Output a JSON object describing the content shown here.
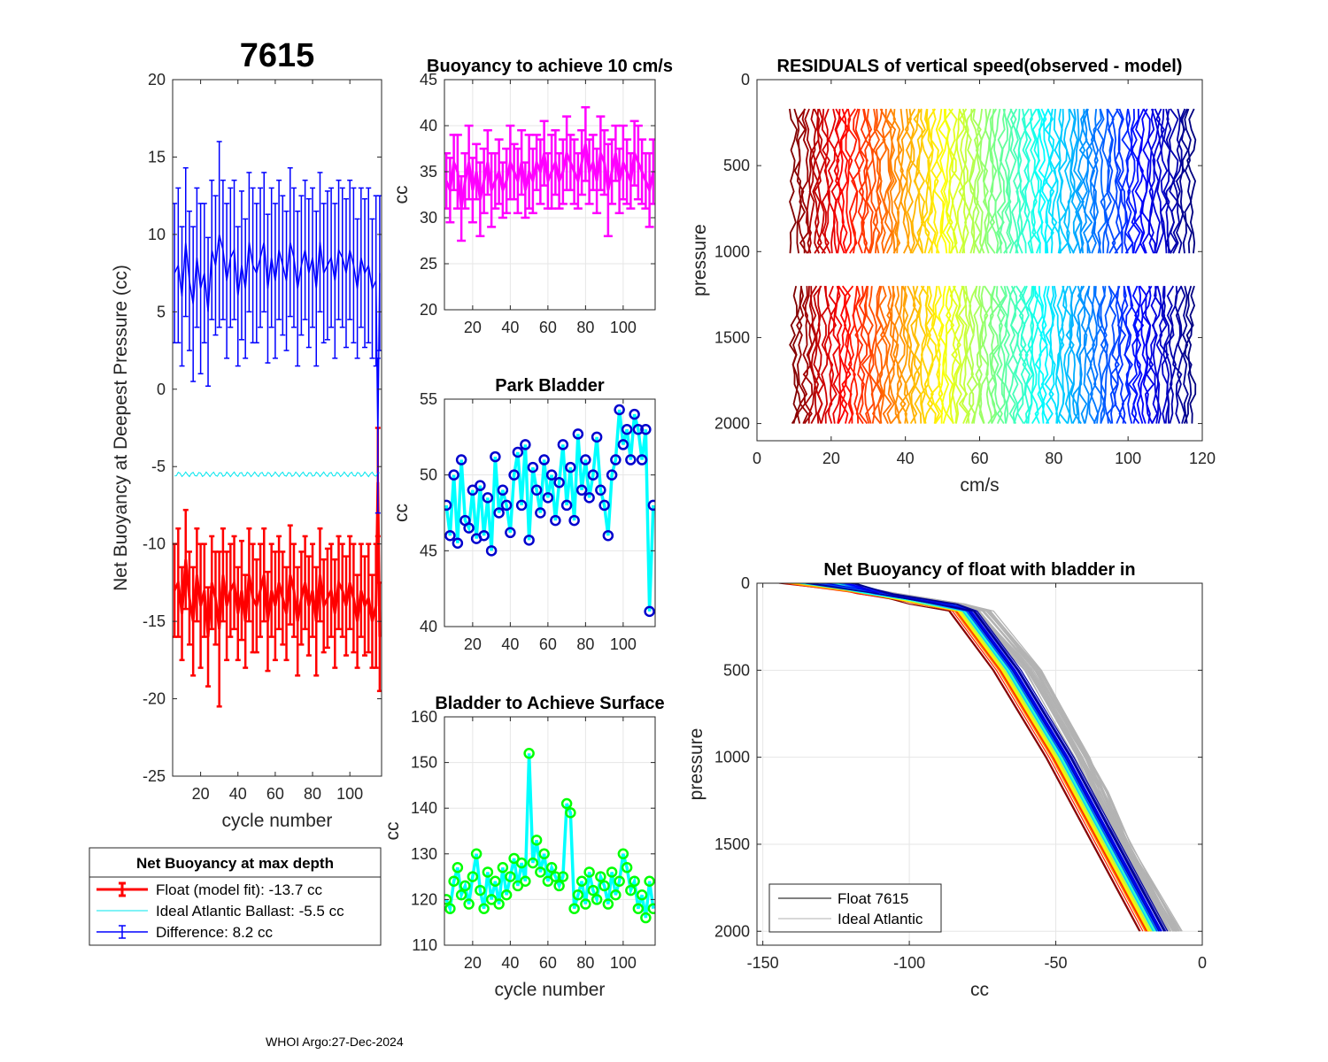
{
  "figure": {
    "main_title": "7615",
    "footer": "WHOI Argo:27-Dec-2024"
  },
  "chart_data": [
    {
      "id": "net_buoyancy",
      "type": "line",
      "title": "",
      "xlabel": "cycle number",
      "ylabel": "Net Buoyancy at Deepest Pressure (cc)",
      "xlim": [
        5,
        117
      ],
      "ylim": [
        -25,
        20
      ],
      "xticks": [
        20,
        40,
        60,
        80,
        100
      ],
      "yticks": [
        -25,
        -20,
        -15,
        -10,
        -5,
        0,
        5,
        10,
        15,
        20
      ],
      "series": [
        {
          "name": "Float (model fit)",
          "color": "#ff0000",
          "style": "errorbar",
          "x": [
            6,
            8,
            10,
            12,
            14,
            16,
            18,
            20,
            22,
            24,
            26,
            28,
            30,
            32,
            34,
            36,
            38,
            40,
            42,
            44,
            46,
            48,
            50,
            52,
            54,
            56,
            58,
            60,
            62,
            64,
            66,
            68,
            70,
            72,
            74,
            76,
            78,
            80,
            82,
            84,
            86,
            88,
            90,
            92,
            94,
            96,
            98,
            100,
            102,
            104,
            106,
            108,
            110,
            112,
            114,
            115,
            116
          ],
          "values": [
            -13,
            -12.5,
            -14.5,
            -11,
            -13.5,
            -15,
            -12,
            -14,
            -13,
            -16,
            -12.5,
            -13.5,
            -15.5,
            -12,
            -14,
            -13,
            -12.5,
            -14.5,
            -13,
            -15,
            -12,
            -13.5,
            -14,
            -13,
            -12,
            -15,
            -13,
            -14,
            -12.5,
            -13.5,
            -14.5,
            -12,
            -13,
            -15,
            -13.5,
            -12.5,
            -14,
            -13,
            -15,
            -12,
            -14,
            -13.5,
            -13,
            -14.5,
            -12.5,
            -13,
            -14,
            -12.5,
            -13.5,
            -15,
            -13,
            -14,
            -13.5,
            -15,
            -14,
            -6,
            -16
          ],
          "errors": [
            3,
            3.5,
            3,
            3.2,
            3,
            3.5,
            3,
            4,
            3,
            3.2,
            3,
            3,
            5,
            3,
            3.5,
            3,
            3,
            3,
            3.2,
            3,
            3,
            3.5,
            3,
            3,
            3,
            3.2,
            3,
            3.5,
            3,
            3,
            3,
            3.2,
            3,
            3.5,
            3,
            3,
            3.2,
            3,
            3.5,
            3,
            3,
            3.2,
            3,
            3.5,
            3,
            3,
            3.2,
            3,
            3.5,
            3,
            3,
            3.2,
            3.5,
            3,
            4,
            3.5,
            3.5
          ]
        },
        {
          "name": "Ideal Atlantic Ballast",
          "color": "#00e5ee",
          "style": "line",
          "x": [
            6,
            116
          ],
          "values": [
            -5.5,
            -5.5
          ]
        },
        {
          "name": "Difference",
          "color": "#0000ff",
          "style": "errorbar",
          "x": [
            6,
            8,
            10,
            12,
            14,
            16,
            18,
            20,
            22,
            24,
            26,
            28,
            30,
            32,
            34,
            36,
            38,
            40,
            42,
            44,
            46,
            48,
            50,
            52,
            54,
            56,
            58,
            60,
            62,
            64,
            66,
            68,
            70,
            72,
            74,
            76,
            78,
            80,
            82,
            84,
            86,
            88,
            90,
            92,
            94,
            96,
            98,
            100,
            102,
            104,
            106,
            108,
            110,
            112,
            114,
            115,
            116
          ],
          "values": [
            7.5,
            8,
            6,
            9.5,
            7,
            5.5,
            8.5,
            6.5,
            7.5,
            5,
            9,
            8,
            10,
            9,
            7,
            8.5,
            9,
            6,
            8,
            6.5,
            9.5,
            8,
            7.5,
            8.5,
            9.5,
            6.5,
            8.5,
            7,
            9,
            8,
            7,
            9.5,
            8.5,
            6.5,
            8,
            9,
            7.5,
            8.5,
            6.5,
            9.5,
            7.5,
            8,
            8.5,
            7,
            9,
            8.5,
            7.5,
            9,
            8,
            6.5,
            8.5,
            7.5,
            8,
            6.5,
            7,
            -3,
            7.5
          ],
          "errors": [
            4.5,
            5,
            4.5,
            4.8,
            4.5,
            5,
            4.5,
            5.5,
            4.5,
            4.8,
            4.5,
            4.5,
            6,
            4.5,
            5,
            4.5,
            4.5,
            4.5,
            4.8,
            4.5,
            4.5,
            5,
            4.5,
            4.5,
            4.5,
            4.8,
            4.5,
            5,
            4.5,
            4.5,
            4.5,
            4.8,
            4.5,
            5,
            4.5,
            4.5,
            4.8,
            4.5,
            5,
            4.5,
            4.5,
            4.8,
            4.5,
            5,
            4.5,
            4.5,
            4.8,
            4.5,
            5,
            4.5,
            4.5,
            4.8,
            5,
            4.5,
            5.5,
            5,
            5
          ]
        }
      ],
      "legend": {
        "title": "Net Buoyancy at max depth",
        "entries": [
          {
            "label": "Float (model fit): -13.7 cc",
            "color": "#ff0000",
            "style": "errorbar"
          },
          {
            "label": "Ideal Atlantic Ballast:  -5.5 cc",
            "color": "#00e5ee",
            "style": "line"
          },
          {
            "label": "Difference:   8.2 cc",
            "color": "#0000ff",
            "style": "errorbar"
          }
        ]
      }
    },
    {
      "id": "buoyancy_10cms",
      "type": "line",
      "title": "Buoyancy to achieve 10 cm/s",
      "xlabel": "",
      "ylabel": "cc",
      "xlim": [
        5,
        117
      ],
      "ylim": [
        20,
        45
      ],
      "xticks": [
        20,
        40,
        60,
        80,
        100
      ],
      "yticks": [
        20,
        25,
        30,
        35,
        40,
        45
      ],
      "series": [
        {
          "name": "buoyancy",
          "color": "#ff00ff",
          "style": "errorbar",
          "x": [
            6,
            8,
            10,
            12,
            14,
            16,
            18,
            20,
            22,
            24,
            26,
            28,
            30,
            32,
            34,
            36,
            38,
            40,
            42,
            44,
            46,
            48,
            50,
            52,
            54,
            56,
            58,
            60,
            62,
            64,
            66,
            68,
            70,
            72,
            74,
            76,
            78,
            80,
            82,
            84,
            86,
            88,
            90,
            92,
            94,
            96,
            98,
            100,
            102,
            104,
            106,
            108,
            110,
            112,
            114,
            116
          ],
          "values": [
            34,
            33,
            36,
            35,
            31,
            34,
            36,
            33,
            35,
            32,
            34,
            36,
            33,
            34,
            35,
            33,
            34,
            36,
            35,
            34,
            36,
            33,
            35,
            34,
            36,
            35,
            37,
            34,
            35,
            36,
            34,
            35,
            37,
            36,
            35,
            34,
            36,
            38,
            35,
            36,
            34,
            37,
            36,
            33,
            35,
            37,
            34,
            36,
            35,
            34,
            37,
            36,
            35,
            34,
            33,
            35
          ],
          "errors": [
            3,
            3.5,
            3,
            4,
            3.5,
            3,
            4,
            3.5,
            3,
            4,
            3.5,
            3.5,
            4,
            3,
            3.5,
            3,
            3.5,
            4,
            3,
            3.5,
            3.5,
            3,
            4,
            3.5,
            3,
            3.5,
            3.5,
            3,
            4,
            3.5,
            3,
            3.5,
            4,
            3,
            3.5,
            3,
            3.5,
            4,
            3.5,
            3,
            3.5,
            4,
            3.5,
            5,
            3.5,
            3,
            3.5,
            4,
            3.5,
            3,
            3.5,
            4,
            3.5,
            3,
            4,
            3.5
          ]
        }
      ]
    },
    {
      "id": "park_bladder",
      "type": "line",
      "title": "Park Bladder",
      "xlabel": "",
      "ylabel": "cc",
      "xlim": [
        5,
        117
      ],
      "ylim": [
        40,
        55
      ],
      "xticks": [
        20,
        40,
        60,
        80,
        100
      ],
      "yticks": [
        40,
        45,
        50,
        55
      ],
      "series": [
        {
          "name": "park bladder",
          "color": "#00ffff",
          "marker_color": "#0000cd",
          "x": [
            6,
            8,
            10,
            12,
            14,
            16,
            18,
            20,
            22,
            24,
            26,
            28,
            30,
            32,
            34,
            36,
            38,
            40,
            42,
            44,
            46,
            48,
            50,
            52,
            54,
            56,
            58,
            60,
            62,
            64,
            66,
            68,
            70,
            72,
            74,
            76,
            78,
            80,
            82,
            84,
            86,
            88,
            90,
            92,
            94,
            96,
            98,
            100,
            102,
            104,
            106,
            108,
            110,
            112,
            114,
            116
          ],
          "values": [
            48,
            46,
            50,
            45.5,
            51,
            47,
            46.5,
            49,
            45.8,
            49.3,
            46,
            48.5,
            45,
            51.2,
            47.5,
            49,
            48,
            46.2,
            50,
            51.5,
            48,
            52,
            45.7,
            50.5,
            49,
            47.5,
            51,
            48.5,
            50,
            47,
            49.5,
            52,
            48,
            50.5,
            47,
            52.7,
            49,
            51,
            48.5,
            50,
            52.5,
            49,
            48,
            46,
            50,
            51,
            54.3,
            52,
            53,
            51,
            54,
            53,
            51,
            53,
            41,
            48
          ]
        }
      ]
    },
    {
      "id": "bladder_surface",
      "type": "line",
      "title": "Bladder to Achieve Surface",
      "xlabel": "cycle number",
      "ylabel": "cc",
      "xlim": [
        5,
        117
      ],
      "ylim": [
        110,
        160
      ],
      "xticks": [
        20,
        40,
        60,
        80,
        100
      ],
      "yticks": [
        110,
        120,
        130,
        140,
        150,
        160
      ],
      "series": [
        {
          "name": "bladder surface",
          "color": "#00ffff",
          "marker_color": "#00ff00",
          "x": [
            6,
            8,
            10,
            12,
            14,
            16,
            18,
            20,
            22,
            24,
            26,
            28,
            30,
            32,
            34,
            36,
            38,
            40,
            42,
            44,
            46,
            48,
            50,
            52,
            54,
            56,
            58,
            60,
            62,
            64,
            66,
            68,
            70,
            72,
            74,
            76,
            78,
            80,
            82,
            84,
            86,
            88,
            90,
            92,
            94,
            96,
            98,
            100,
            102,
            104,
            106,
            108,
            110,
            112,
            114,
            116
          ],
          "values": [
            120,
            118,
            124,
            127,
            121,
            123,
            119,
            125,
            130,
            122,
            118,
            126,
            120,
            124,
            119,
            127,
            121,
            125,
            129,
            123,
            128,
            124,
            152,
            128,
            133,
            126,
            130,
            124,
            127,
            125,
            123,
            125,
            141,
            139,
            118,
            121,
            124,
            119,
            126,
            122,
            120,
            125,
            123,
            119,
            126,
            121,
            124,
            130,
            127,
            122,
            124,
            118,
            121,
            116,
            124,
            118
          ]
        }
      ]
    },
    {
      "id": "residuals",
      "type": "line",
      "title": "RESIDUALS of vertical speed(observed - model)",
      "xlabel": "cm/s",
      "ylabel": "pressure",
      "xlim": [
        0,
        120
      ],
      "ylim": [
        0,
        2100
      ],
      "y_reversed": true,
      "xticks": [
        0,
        20,
        40,
        60,
        80,
        100,
        120
      ],
      "yticks": [
        0,
        500,
        1000,
        1500,
        2000
      ],
      "profiles": 116,
      "offset_start_cms": 10,
      "offset_end_cms": 117,
      "segments_dbar": [
        [
          170,
          1010
        ],
        [
          1200,
          2000
        ]
      ],
      "colormap": "jet"
    },
    {
      "id": "net_buoyancy_profiles",
      "type": "line",
      "title": "Net Buoyancy of float with bladder in",
      "xlabel": "cc",
      "ylabel": "pressure",
      "xlim": [
        -152,
        0
      ],
      "ylim": [
        0,
        2080
      ],
      "y_reversed": true,
      "xticks": [
        -150,
        -100,
        -50,
        0
      ],
      "yticks": [
        0,
        500,
        1000,
        1500,
        2000
      ],
      "float_profile_template": {
        "pressure": [
          0,
          60,
          120,
          160,
          500,
          1000,
          1500,
          2000
        ],
        "cc": [
          -130,
          -112,
          -92,
          -82,
          -67,
          -49,
          -33,
          -17
        ]
      },
      "ideal_profile_template": {
        "pressure": [
          0,
          60,
          120,
          160,
          500,
          1000,
          1200,
          1500,
          2000
        ],
        "cc": [
          -128,
          -108,
          -85,
          -76,
          -58,
          -41,
          -35,
          -27,
          -10
        ]
      },
      "legend": {
        "entries": [
          {
            "label": "Float 7615",
            "color": "#000000"
          },
          {
            "label": "Ideal Atlantic",
            "color": "#b0b0b0"
          }
        ]
      }
    }
  ]
}
